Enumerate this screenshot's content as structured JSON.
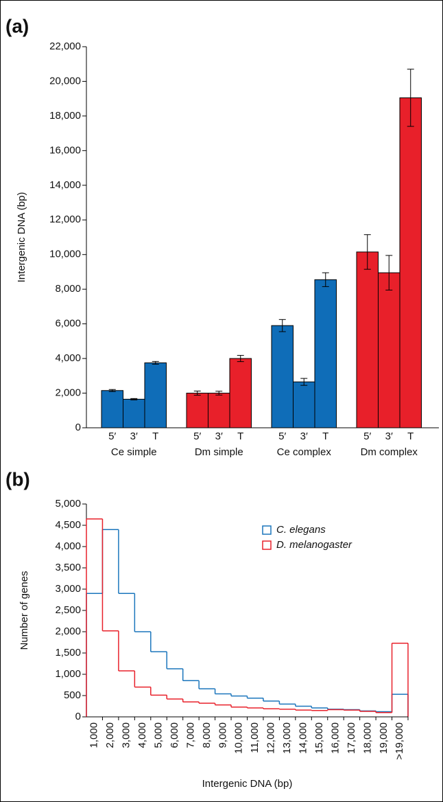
{
  "chart_data": [
    {
      "type": "bar",
      "panel_label": "(a)",
      "y_label": "Intergenic DNA (bp)",
      "categories": [
        "Ce simple",
        "Dm simple",
        "Ce complex",
        "Dm complex"
      ],
      "category_colors": [
        "#0f6db8",
        "#e8202a",
        "#0f6db8",
        "#e8202a"
      ],
      "series": [
        {
          "name": "5′",
          "values": [
            2150,
            2000,
            5900,
            10150
          ],
          "errors": [
            60,
            120,
            350,
            1000
          ]
        },
        {
          "name": "3′",
          "values": [
            1650,
            2000,
            2650,
            8950
          ],
          "errors": [
            40,
            110,
            200,
            1000
          ]
        },
        {
          "name": "T",
          "values": [
            3750,
            4000,
            8550,
            19050
          ],
          "errors": [
            80,
            180,
            400,
            1650
          ]
        }
      ],
      "ylim": [
        0,
        22000
      ],
      "yticks": [
        0,
        {
          "value": 2000,
          "label": "2,000"
        },
        {
          "value": 4000,
          "label": "4,000"
        },
        {
          "value": 6000,
          "label": "6,000"
        },
        {
          "value": 8000,
          "label": "8,000"
        },
        {
          "value": 10000,
          "label": "10,000"
        },
        {
          "value": 12000,
          "label": "12,000"
        },
        {
          "value": 14000,
          "label": "14,000"
        },
        {
          "value": 16000,
          "label": "16,000"
        },
        {
          "value": 18000,
          "label": "18,000"
        },
        {
          "value": 20000,
          "label": "20,000"
        },
        {
          "value": 22000,
          "label": "22,000"
        }
      ]
    },
    {
      "type": "step",
      "panel_label": "(b)",
      "x_label": "Intergenic DNA (bp)",
      "y_label": "Number of genes",
      "categories": [
        "1,000",
        "2,000",
        "3,000",
        "4,000",
        "5,000",
        "6,000",
        "7,000",
        "8,000",
        "9,000",
        "10,000",
        "11,000",
        "12,000",
        "13,000",
        "14,000",
        "15,000",
        "16,000",
        "17,000",
        "18,000",
        "19,000",
        ">19,000"
      ],
      "series": [
        {
          "name": "C. elegans",
          "color": "#1a75bc",
          "values": [
            2900,
            4400,
            2900,
            2000,
            1530,
            1130,
            850,
            660,
            540,
            490,
            440,
            370,
            300,
            250,
            210,
            180,
            170,
            140,
            120,
            530
          ]
        },
        {
          "name": "D. melanogaster",
          "color": "#e8202a",
          "values": [
            4650,
            2020,
            1080,
            700,
            510,
            420,
            350,
            320,
            280,
            230,
            210,
            190,
            180,
            160,
            150,
            170,
            160,
            130,
            100,
            1730
          ]
        }
      ],
      "ylim": [
        0,
        5000
      ],
      "yticks": [
        0,
        500,
        {
          "value": 1000,
          "label": "1,000"
        },
        {
          "value": 1500,
          "label": "1,500"
        },
        {
          "value": 2000,
          "label": "2,000"
        },
        {
          "value": 2500,
          "label": "2,500"
        },
        {
          "value": 3000,
          "label": "3,000"
        },
        {
          "value": 3500,
          "label": "3,500"
        },
        {
          "value": 4000,
          "label": "4,000"
        },
        {
          "value": 4500,
          "label": "4,500"
        },
        {
          "value": 5000,
          "label": "5,000"
        }
      ],
      "legend": "upper right"
    }
  ]
}
